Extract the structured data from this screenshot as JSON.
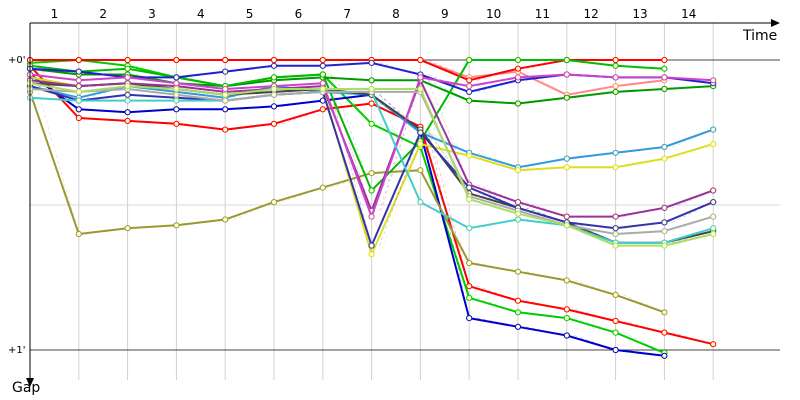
{
  "chart_data": {
    "type": "line",
    "xlabel": "Time",
    "ylabel": "Gap",
    "x_ticks": [
      "1",
      "2",
      "3",
      "4",
      "5",
      "6",
      "7",
      "8",
      "9",
      "10",
      "11",
      "12",
      "13",
      "14"
    ],
    "y_ticks": [
      "+0'",
      "+1'"
    ],
    "ylim": [
      0,
      1
    ],
    "x_start": 0,
    "x_end": 15,
    "grid": true,
    "y_direction": "down",
    "series": [
      {
        "color": "#ff0000",
        "values": [
          0.02,
          0.2,
          0.21,
          0.22,
          0.24,
          0.22,
          0.17,
          0.15,
          0.23,
          0.78,
          0.83,
          0.86,
          0.9,
          0.94,
          0.98
        ]
      },
      {
        "color": "#00cc00",
        "values": [
          0.01,
          0.0,
          0.02,
          0.06,
          0.09,
          0.06,
          0.05,
          0.22,
          0.3,
          0.82,
          0.87,
          0.89,
          0.94,
          1.01
        ]
      },
      {
        "color": "#0000cc",
        "values": [
          0.05,
          0.17,
          0.18,
          0.17,
          0.17,
          0.16,
          0.14,
          0.12,
          0.25,
          0.89,
          0.92,
          0.95,
          1.0,
          1.02
        ]
      },
      {
        "color": "#999933",
        "values": [
          0.11,
          0.6,
          0.58,
          0.57,
          0.55,
          0.49,
          0.44,
          0.39,
          0.38,
          0.7,
          0.73,
          0.76,
          0.81,
          0.87
        ]
      },
      {
        "color": "#ff8888",
        "values": [
          0.0,
          0.0,
          0.0,
          0.0,
          0.0,
          0.0,
          0.0,
          0.0,
          0.0,
          0.06,
          0.04,
          0.12,
          0.09,
          0.07
        ]
      },
      {
        "color": "#ff0000",
        "values": [
          0.0,
          0.0,
          0.0,
          0.0,
          0.0,
          0.0,
          0.0,
          0.0,
          0.0,
          0.07,
          0.03,
          0.0,
          0.0,
          0.0
        ]
      },
      {
        "color": "#009900",
        "values": [
          0.03,
          0.05,
          0.05,
          0.08,
          0.09,
          0.07,
          0.06,
          0.07,
          0.07,
          0.14,
          0.15,
          0.13,
          0.11,
          0.1,
          0.09
        ]
      },
      {
        "color": "#00bb00",
        "values": [
          0.02,
          0.04,
          0.03,
          0.06,
          0.09,
          0.06,
          0.05,
          0.45,
          0.28,
          0.0,
          0.0,
          0.0,
          0.02,
          0.03
        ]
      },
      {
        "color": "#2222cc",
        "values": [
          0.03,
          0.04,
          0.06,
          0.06,
          0.04,
          0.02,
          0.02,
          0.01,
          0.05,
          0.11,
          0.07,
          0.05,
          0.06,
          0.06,
          0.08
        ]
      },
      {
        "color": "#3399dd",
        "values": [
          0.09,
          0.13,
          0.09,
          0.11,
          0.13,
          0.09,
          0.11,
          0.12,
          0.25,
          0.32,
          0.37,
          0.34,
          0.32,
          0.3,
          0.24
        ]
      },
      {
        "color": "#dddd22",
        "values": [
          0.06,
          0.09,
          0.08,
          0.1,
          0.12,
          0.11,
          0.1,
          0.67,
          0.29,
          0.33,
          0.38,
          0.37,
          0.37,
          0.34,
          0.29
        ]
      },
      {
        "color": "#444444",
        "values": [
          0.08,
          0.09,
          0.08,
          0.1,
          0.12,
          0.11,
          0.1,
          0.12,
          0.24,
          0.46,
          0.51,
          0.56,
          0.63,
          0.63,
          0.59
        ]
      },
      {
        "color": "#993399",
        "values": [
          0.07,
          0.09,
          0.08,
          0.09,
          0.11,
          0.1,
          0.09,
          0.52,
          0.07,
          0.43,
          0.49,
          0.54,
          0.54,
          0.51,
          0.45
        ]
      },
      {
        "color": "#cc44cc",
        "values": [
          0.05,
          0.07,
          0.06,
          0.08,
          0.1,
          0.09,
          0.08,
          0.54,
          0.06,
          0.09,
          0.06,
          0.05,
          0.06,
          0.06,
          0.07
        ]
      },
      {
        "color": "#3333aa",
        "values": [
          0.09,
          0.14,
          0.12,
          0.13,
          0.14,
          0.12,
          0.11,
          0.64,
          0.25,
          0.44,
          0.51,
          0.56,
          0.58,
          0.56,
          0.49
        ]
      },
      {
        "color": "#44cccc",
        "values": [
          0.13,
          0.14,
          0.14,
          0.14,
          0.14,
          0.12,
          0.11,
          0.11,
          0.49,
          0.58,
          0.55,
          0.57,
          0.63,
          0.63,
          0.58
        ]
      },
      {
        "color": "#aaaaaa",
        "values": [
          0.1,
          0.11,
          0.1,
          0.12,
          0.14,
          0.12,
          0.11,
          0.11,
          0.11,
          0.47,
          0.52,
          0.57,
          0.6,
          0.59,
          0.54
        ]
      },
      {
        "color": "#aadd66",
        "values": [
          0.08,
          0.11,
          0.09,
          0.1,
          0.12,
          0.1,
          0.1,
          0.1,
          0.1,
          0.48,
          0.53,
          0.57,
          0.64,
          0.64,
          0.6
        ]
      }
    ]
  }
}
